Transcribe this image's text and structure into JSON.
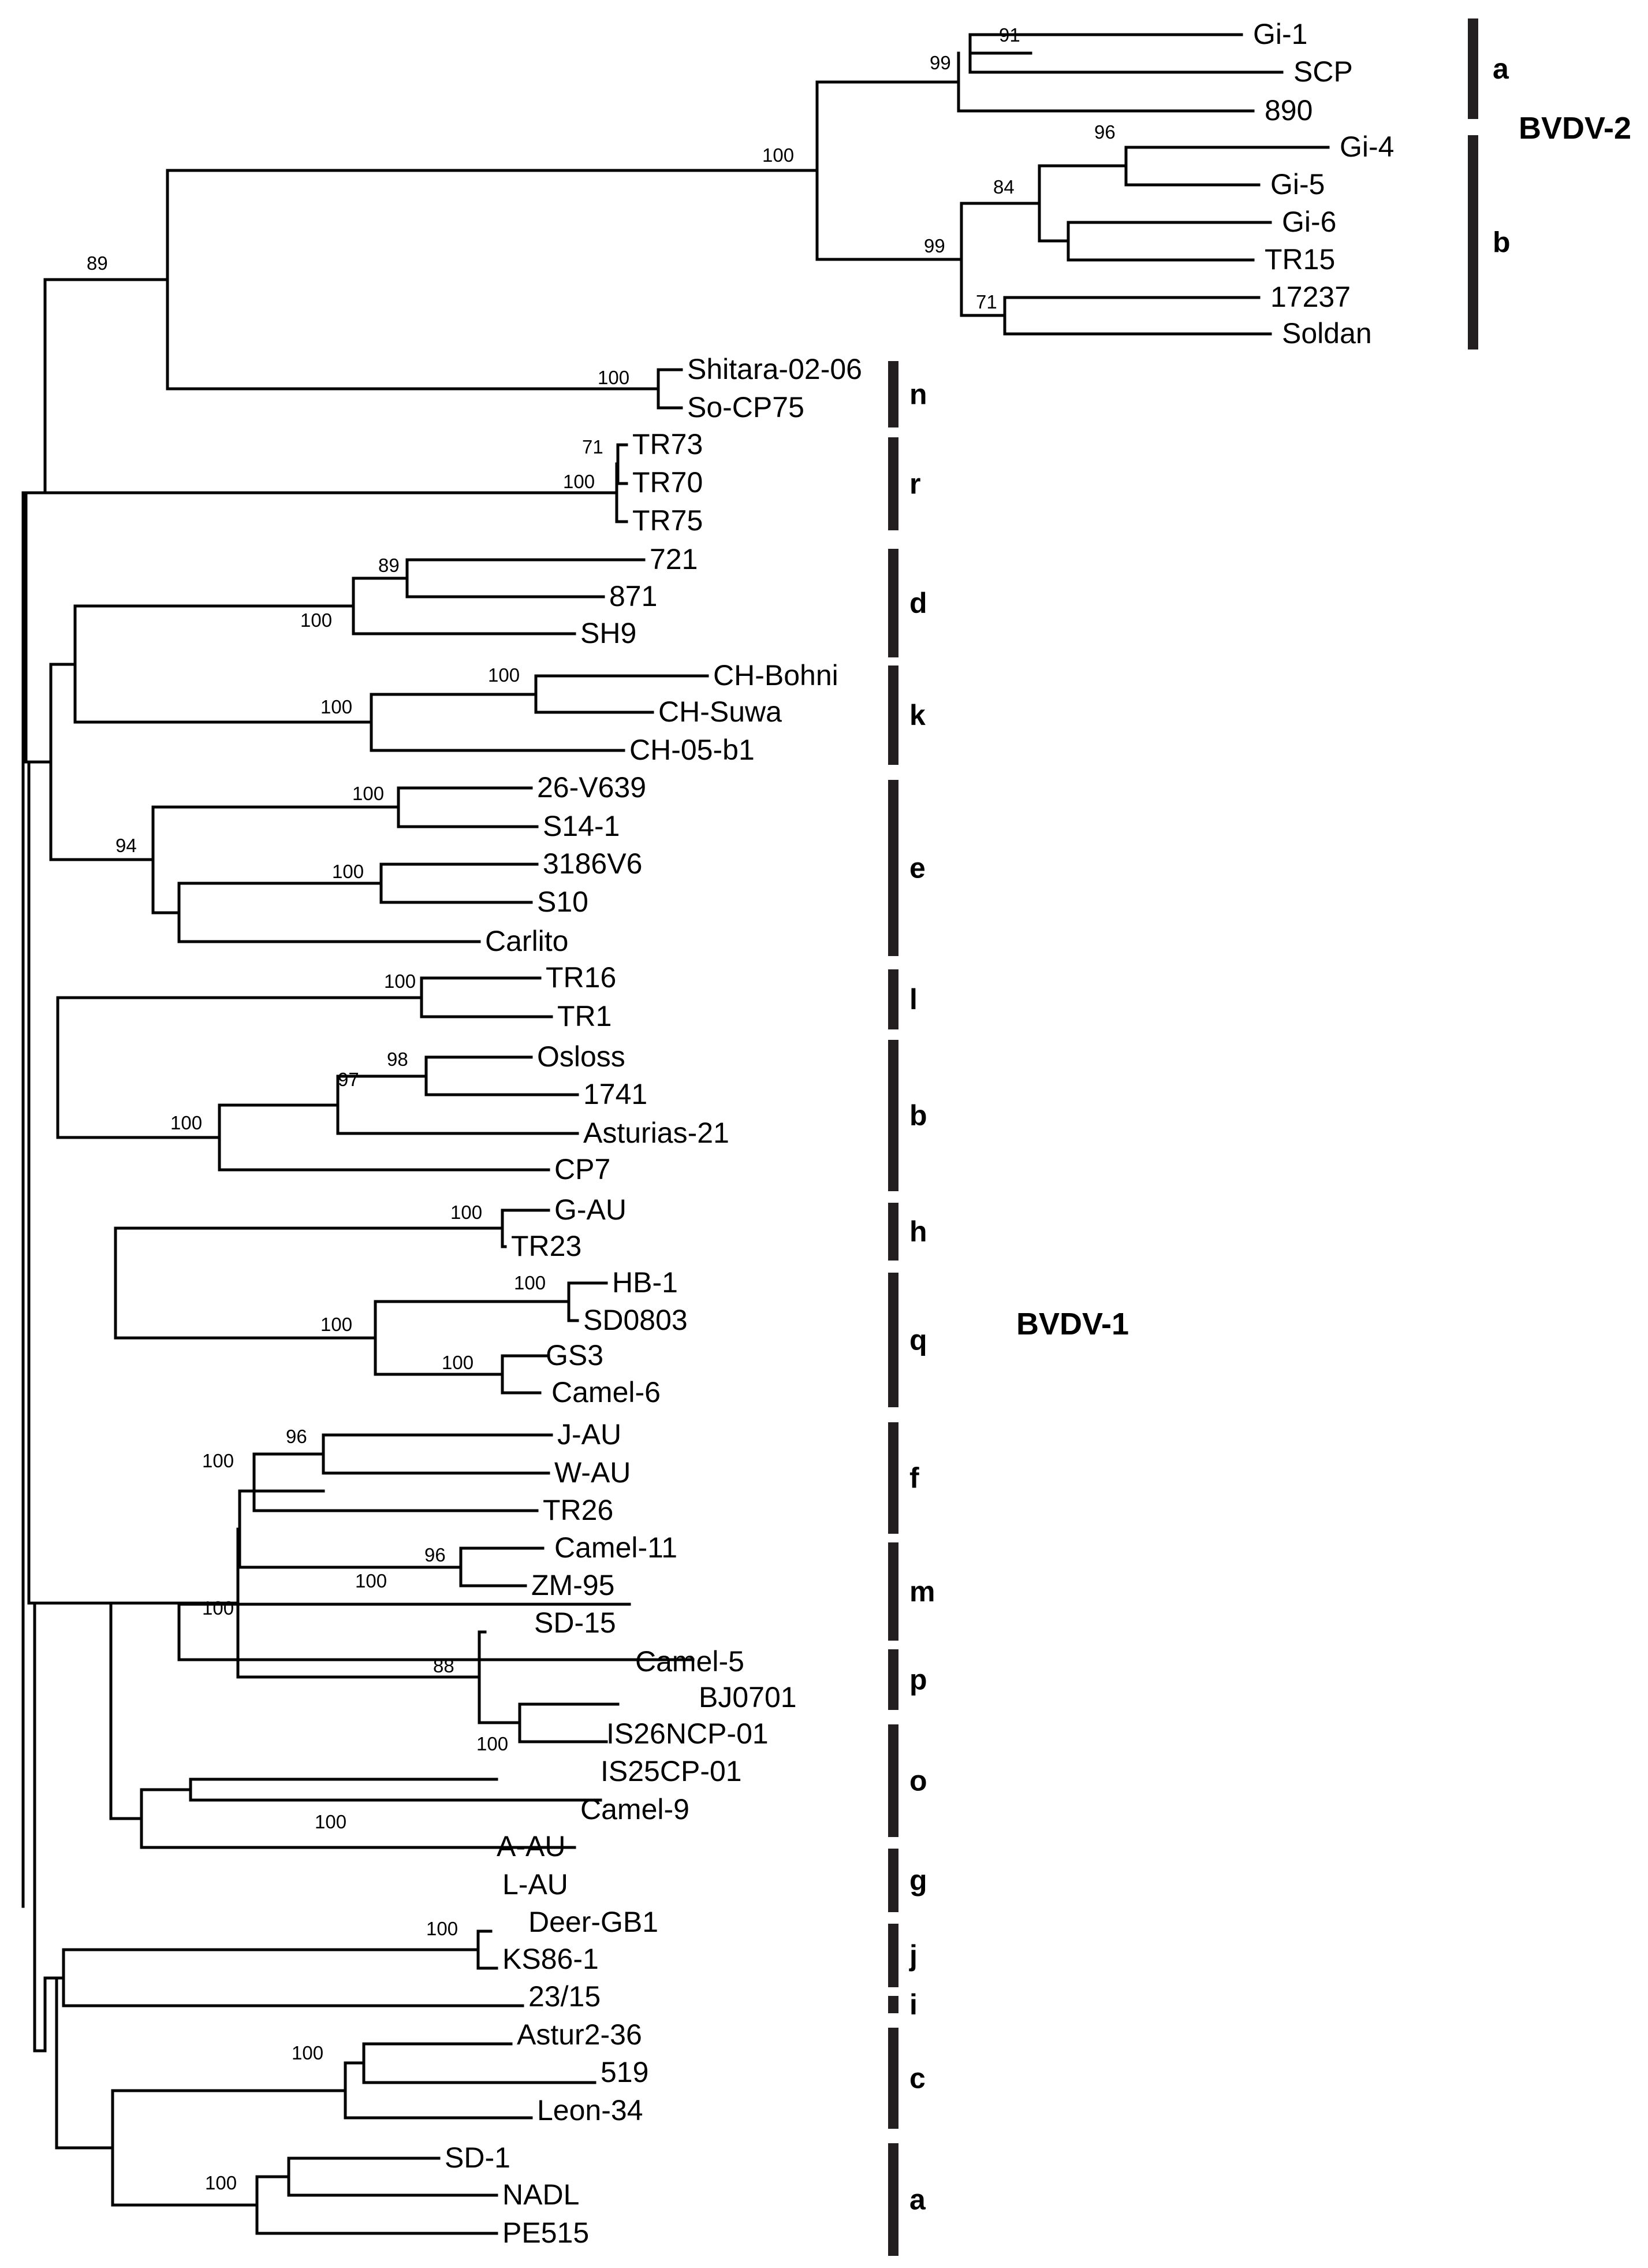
{
  "groups": {
    "bvdv2": "BVDV-2",
    "bvdv1": "BVDV-1"
  },
  "leaves": [
    "Gi-1",
    "SCP",
    "890",
    "Gi-4",
    "Gi-5",
    "Gi-6",
    "TR15",
    "17237",
    "Soldan",
    "Shitara-02-06",
    "So-CP75",
    "TR73",
    "TR70",
    "TR75",
    "721",
    "871",
    "SH9",
    "CH-Bohni",
    "CH-Suwa",
    "CH-05-b1",
    "26-V639",
    "S14-1",
    "3186V6",
    "S10",
    "Carlito",
    "TR16",
    "TR1",
    "Osloss",
    "1741",
    "Asturias-21",
    "CP7",
    "G-AU",
    "TR23",
    "HB-1",
    "SD0803",
    "GS3",
    "Camel-6",
    "J-AU",
    "W-AU",
    "TR26",
    "Camel-11",
    "ZM-95",
    "SD-15",
    "Camel-5",
    "BJ0701",
    "IS26NCP-01",
    "IS25CP-01",
    "Camel-9",
    "A-AU",
    "L-AU",
    "Deer-GB1",
    "KS86-1",
    "23/15",
    "Astur2-36",
    "519",
    "Leon-34",
    "SD-1",
    "NADL",
    "PE515"
  ],
  "bootstrap": [
    "91",
    "99",
    "96",
    "84",
    "99",
    "71",
    "100",
    "89",
    "100",
    "71",
    "100",
    "89",
    "100",
    "100",
    "100",
    "100",
    "94",
    "100",
    "100",
    "98",
    "97",
    "100",
    "100",
    "100",
    "100",
    "100",
    "96",
    "100",
    "96",
    "100",
    "100",
    "88",
    "100",
    "100",
    "100",
    "100",
    "100"
  ],
  "clades": [
    "a",
    "b",
    "n",
    "r",
    "d",
    "k",
    "e",
    "l",
    "b",
    "h",
    "q",
    "f",
    "m",
    "p",
    "o",
    "g",
    "j",
    "i",
    "c",
    "a"
  ]
}
